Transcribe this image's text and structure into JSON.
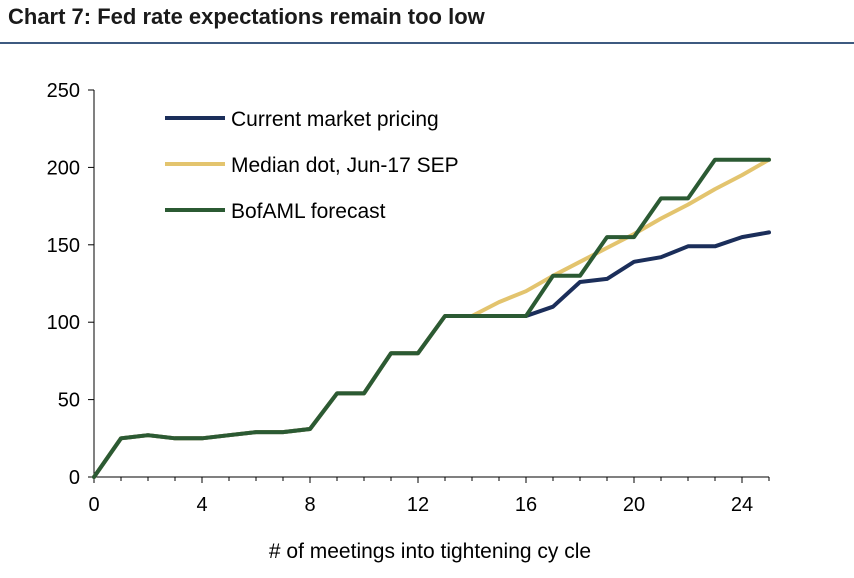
{
  "chart_data": {
    "type": "line",
    "title": "Chart 7: Fed rate expectations remain too low",
    "xlabel": "# of meetings into tightening  cy cle",
    "ylabel": "",
    "xlim": [
      0,
      25
    ],
    "ylim": [
      0,
      250
    ],
    "x_ticks": [
      0,
      4,
      8,
      12,
      16,
      20,
      24
    ],
    "y_ticks": [
      0,
      50,
      100,
      150,
      200,
      250
    ],
    "grid": false,
    "legend_position": "top-left",
    "series": [
      {
        "name": "Current market pricing",
        "color": "#1b2e5a",
        "x": [
          0,
          1,
          2,
          3,
          4,
          5,
          6,
          7,
          8,
          9,
          10,
          11,
          12,
          13,
          14,
          15,
          16,
          17,
          18,
          19,
          20,
          21,
          22,
          23,
          24,
          25
        ],
        "values": [
          0,
          25,
          27,
          25,
          25,
          27,
          29,
          29,
          31,
          54,
          54,
          80,
          80,
          104,
          104,
          104,
          104,
          110,
          126,
          128,
          139,
          142,
          149,
          149,
          155,
          158
        ]
      },
      {
        "name": "Median dot, Jun-17 SEP",
        "color": "#e3c46e",
        "x": [
          0,
          1,
          2,
          3,
          4,
          5,
          6,
          7,
          8,
          9,
          10,
          11,
          12,
          13,
          14,
          15,
          16,
          17,
          18,
          19,
          20,
          21,
          22,
          23,
          24,
          25
        ],
        "values": [
          0,
          25,
          27,
          25,
          25,
          27,
          29,
          29,
          31,
          54,
          54,
          80,
          80,
          104,
          104,
          113,
          120,
          130,
          139,
          148,
          157,
          167,
          176,
          186,
          195,
          205
        ]
      },
      {
        "name": "BofAML forecast",
        "color": "#2b5a33",
        "x": [
          0,
          1,
          2,
          3,
          4,
          5,
          6,
          7,
          8,
          9,
          10,
          11,
          12,
          13,
          14,
          15,
          16,
          17,
          18,
          19,
          20,
          21,
          22,
          23,
          24,
          25
        ],
        "values": [
          0,
          25,
          27,
          25,
          25,
          27,
          29,
          29,
          31,
          54,
          54,
          80,
          80,
          104,
          104,
          104,
          104,
          130,
          130,
          155,
          155,
          180,
          180,
          205,
          205,
          205
        ]
      }
    ]
  }
}
